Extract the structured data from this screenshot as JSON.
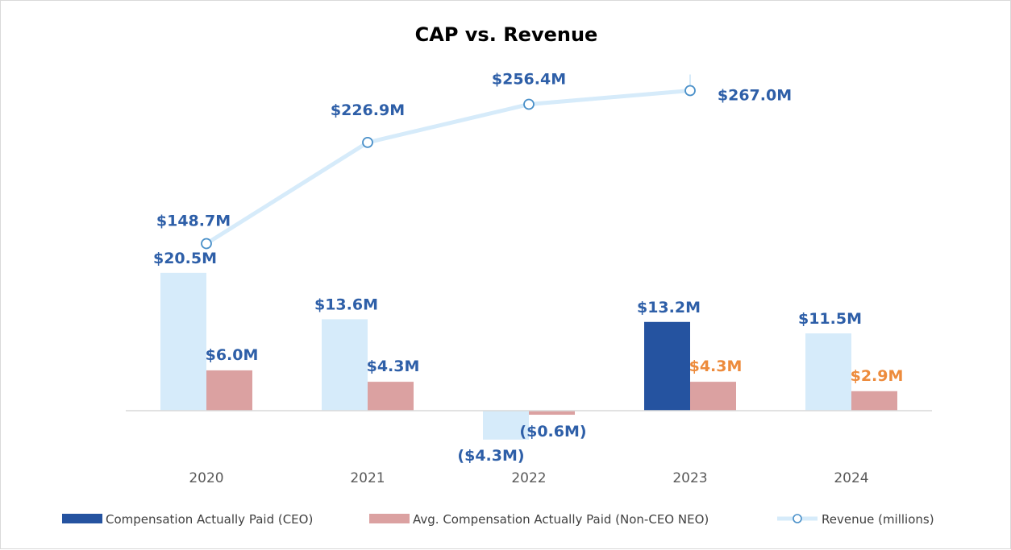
{
  "chart_data": {
    "type": "bar",
    "title": "CAP vs. Revenue",
    "categories": [
      "2020",
      "2021",
      "2022",
      "2023",
      "2024"
    ],
    "series": [
      {
        "name": "Compensation Actually Paid (CEO)",
        "kind": "bar",
        "values": [
          20.5,
          13.6,
          -4.3,
          13.2,
          11.5
        ],
        "labels": [
          "$20.5M",
          "$13.6M",
          "($4.3M)",
          "$13.2M",
          "$11.5M"
        ],
        "colors": [
          "#d6ebfa",
          "#d6ebfa",
          "#d6ebfa",
          "#2553a0",
          "#d6ebfa"
        ],
        "label_color": "#2e5fa8"
      },
      {
        "name": "Avg. Compensation Actually Paid (Non-CEO NEO)",
        "kind": "bar",
        "values": [
          6.0,
          4.3,
          -0.6,
          4.3,
          2.9
        ],
        "labels": [
          "$6.0M",
          "$4.3M",
          "($0.6M)",
          "$4.3M",
          "$2.9M"
        ],
        "color": "#dba1a1",
        "label_colors": [
          "#2e5fa8",
          "#2e5fa8",
          "#2e5fa8",
          "#ed8b3c",
          "#ed8b3c"
        ]
      },
      {
        "name": "Revenue (millions)",
        "kind": "line",
        "values": [
          148.7,
          226.9,
          256.4,
          267.0,
          null
        ],
        "labels": [
          "$148.7M",
          "$226.9M",
          "$256.4M",
          "$267.0M",
          ""
        ],
        "color": "#d6ebfa",
        "marker_color": "#4a90c9",
        "label_color": "#2e5fa8"
      }
    ],
    "legend_position": "bottom",
    "grid": false
  }
}
